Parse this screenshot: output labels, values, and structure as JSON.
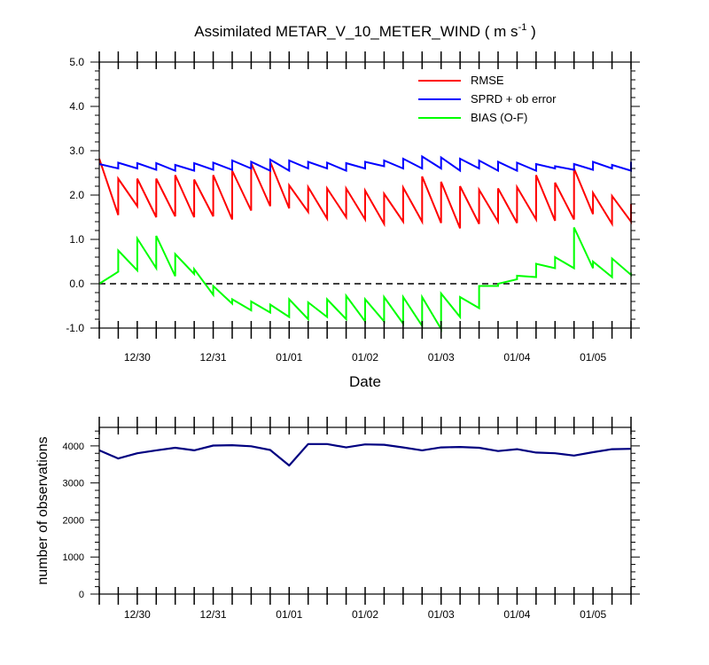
{
  "chart_data": [
    {
      "type": "line",
      "title": "Assimilated METAR_V_10_METER_WIND",
      "title_units": "( m s",
      "title_units_exponent": "-1",
      "title_units_close": " )",
      "xlabel": "Date",
      "ylabel": "",
      "ylim": [
        -1.0,
        5.0
      ],
      "xlim_days": [
        0.0,
        7.0
      ],
      "x_unit": "days since 12/29 12:00",
      "y_tick_values": [
        -1.0,
        0.0,
        1.0,
        2.0,
        3.0,
        4.0,
        5.0
      ],
      "y_tick_labels": [
        "-1.0",
        "0.0",
        "1.0",
        "2.0",
        "3.0",
        "4.0",
        "5.0"
      ],
      "x_tick_labels": [
        "12/30",
        "12/31",
        "01/01",
        "01/02",
        "01/03",
        "01/04",
        "01/05"
      ],
      "x_tick_positions_days": [
        0.5,
        1.5,
        2.5,
        3.5,
        4.5,
        5.5,
        6.5
      ],
      "cycle_times_days": [
        0.0,
        0.25,
        0.5,
        0.75,
        1.0,
        1.25,
        1.5,
        1.75,
        2.0,
        2.25,
        2.5,
        2.75,
        3.0,
        3.25,
        3.5,
        3.75,
        4.0,
        4.25,
        4.5,
        4.75,
        5.0,
        5.25,
        5.5,
        5.75,
        6.0,
        6.25,
        6.5,
        6.75,
        7.0
      ],
      "reference_line": {
        "y": 0.0,
        "style": "dashed"
      },
      "legend": [
        "RMSE",
        "SPRD + ob error",
        "BIAS (O-F)"
      ],
      "legend_position": "top-right",
      "series": [
        {
          "name": "RMSE",
          "color": "#ff0000",
          "forecast": [
            1.55,
            1.75,
            1.5,
            1.52,
            1.5,
            1.52,
            1.45,
            1.65,
            1.75,
            1.7,
            1.62,
            1.47,
            1.5,
            1.45,
            1.35,
            1.4,
            1.4,
            1.37,
            1.25,
            1.35,
            1.4,
            1.37,
            1.45,
            1.42,
            1.45,
            1.57,
            1.35,
            1.4
          ],
          "analysis": [
            2.82,
            2.37,
            2.37,
            2.37,
            2.45,
            2.35,
            2.45,
            2.55,
            2.72,
            2.75,
            2.22,
            2.18,
            2.15,
            2.15,
            2.1,
            2.03,
            2.17,
            2.42,
            2.3,
            2.2,
            2.12,
            2.15,
            2.18,
            2.45,
            2.28,
            2.6,
            2.05,
            1.98,
            1.8
          ]
        },
        {
          "name": "SPRD + ob error",
          "color": "#0000ff",
          "forecast": [
            2.6,
            2.6,
            2.57,
            2.55,
            2.55,
            2.57,
            2.57,
            2.6,
            2.55,
            2.55,
            2.6,
            2.6,
            2.55,
            2.6,
            2.65,
            2.6,
            2.6,
            2.6,
            2.55,
            2.6,
            2.55,
            2.55,
            2.55,
            2.6,
            2.57,
            2.57,
            2.6,
            2.55
          ],
          "analysis": [
            2.7,
            2.73,
            2.72,
            2.72,
            2.68,
            2.72,
            2.73,
            2.78,
            2.75,
            2.8,
            2.78,
            2.75,
            2.73,
            2.72,
            2.75,
            2.78,
            2.82,
            2.87,
            2.85,
            2.82,
            2.78,
            2.75,
            2.73,
            2.7,
            2.65,
            2.7,
            2.75,
            2.68,
            2.75
          ]
        },
        {
          "name": "BIAS (O-F)",
          "color": "#00ff00",
          "forecast": [
            0.27,
            0.3,
            0.35,
            0.17,
            0.22,
            -0.25,
            -0.45,
            -0.6,
            -0.65,
            -0.75,
            -0.8,
            -0.75,
            -0.8,
            -0.85,
            -0.85,
            -0.9,
            -0.95,
            -1.02,
            -0.75,
            -0.55,
            -0.05,
            0.1,
            0.15,
            0.35,
            0.35,
            0.35,
            0.15,
            0.2
          ],
          "analysis": [
            0.0,
            0.75,
            1.02,
            1.08,
            0.67,
            0.33,
            -0.05,
            -0.35,
            -0.4,
            -0.47,
            -0.35,
            -0.42,
            -0.35,
            -0.27,
            -0.35,
            -0.3,
            -0.3,
            -0.3,
            -0.22,
            -0.3,
            -0.05,
            0.0,
            0.18,
            0.45,
            0.6,
            1.27,
            0.5,
            0.57,
            0.25
          ]
        }
      ]
    },
    {
      "type": "line",
      "title": "",
      "xlabel": "",
      "ylabel": "number of observations",
      "ylim": [
        0,
        4500
      ],
      "xlim_days": [
        0.0,
        7.0
      ],
      "y_tick_values": [
        0,
        1000,
        2000,
        3000,
        4000
      ],
      "y_tick_labels": [
        "0",
        "1000",
        "2000",
        "3000",
        "4000"
      ],
      "x_tick_labels": [
        "12/30",
        "12/31",
        "01/01",
        "01/02",
        "01/03",
        "01/04",
        "01/05"
      ],
      "x_tick_positions_days": [
        0.5,
        1.5,
        2.5,
        3.5,
        4.5,
        5.5,
        6.5
      ],
      "series": [
        {
          "name": "number of observations",
          "color": "#000080",
          "x_days": [
            0.0,
            0.25,
            0.5,
            0.75,
            1.0,
            1.25,
            1.5,
            1.75,
            2.0,
            2.25,
            2.5,
            2.75,
            3.0,
            3.25,
            3.5,
            3.75,
            4.0,
            4.25,
            4.5,
            4.75,
            5.0,
            5.25,
            5.5,
            5.75,
            6.0,
            6.25,
            6.5,
            6.75,
            7.0
          ],
          "values": [
            3880,
            3660,
            3800,
            3880,
            3950,
            3880,
            4010,
            4020,
            3990,
            3890,
            3470,
            4050,
            4050,
            3960,
            4040,
            4030,
            3960,
            3880,
            3960,
            3970,
            3950,
            3860,
            3910,
            3820,
            3800,
            3740,
            3830,
            3910,
            3920
          ]
        }
      ]
    }
  ]
}
